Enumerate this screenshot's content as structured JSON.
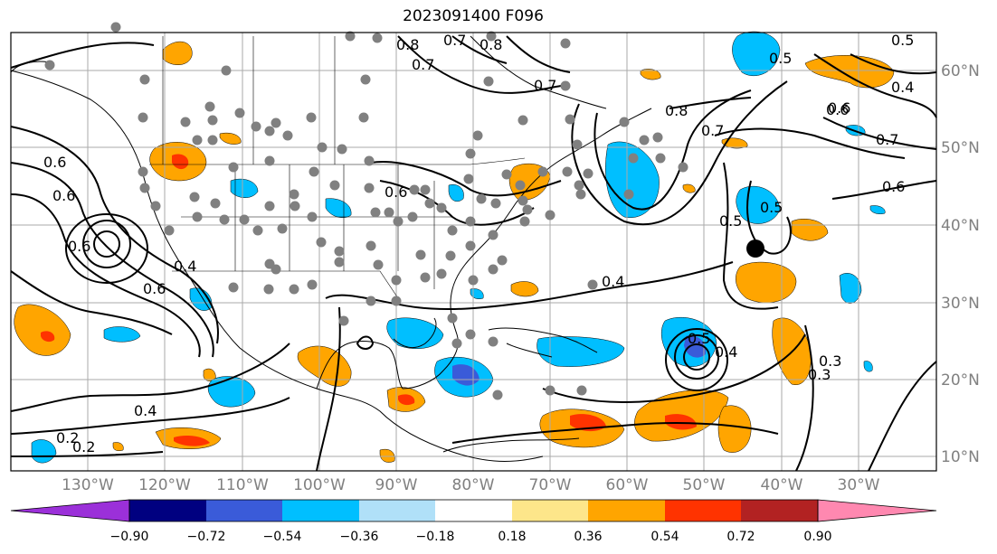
{
  "title": "2023091400 F096",
  "colors": {
    "purple": "#9b30d9",
    "navy": "#000080",
    "royal": "#3a5bd9",
    "sky": "#00bfff",
    "pale_blue": "#b0e0f8",
    "white": "#ffffff",
    "pale_yellow": "#fde68a",
    "orange": "#ffa500",
    "red_orange": "#ff3300",
    "dark_red": "#b22222",
    "pink": "#ff88b0",
    "grid": "#aaaaaa",
    "station": "#808080",
    "contour": "#000000",
    "coast": "#000000"
  },
  "lon_ticks": [
    "130°W",
    "120°W",
    "110°W",
    "100°W",
    "90°W",
    "80°W",
    "70°W",
    "60°W",
    "50°W",
    "40°W",
    "30°W"
  ],
  "lat_ticks": [
    "60°N",
    "50°N",
    "40°N",
    "30°N",
    "20°N",
    "10°N"
  ],
  "colorbar": {
    "labels": [
      "−0.90",
      "−0.72",
      "−0.54",
      "−0.36",
      "−0.18",
      "0.18",
      "0.36",
      "0.54",
      "0.72",
      "0.90"
    ],
    "colors": [
      "#9b30d9",
      "#000080",
      "#3a5bd9",
      "#00bfff",
      "#b0e0f8",
      "#ffffff",
      "#fde68a",
      "#ffa500",
      "#ff3300",
      "#b22222",
      "#ff88b0"
    ]
  },
  "contour_labels": [
    "0.8",
    "0.7",
    "0.6",
    "0.5",
    "0.4",
    "0.3",
    "0.2",
    "0.8",
    "0.7",
    "0.6",
    "0.5",
    "0.4",
    "0.7",
    "0.6",
    "0.6",
    "0.5",
    "0.4",
    "0.4",
    "0.2",
    "0.7",
    "0.6",
    "0.6",
    "0.6",
    "0.5",
    "0.4",
    "0.3",
    "0.8",
    "0.7",
    "0.6",
    "0.5"
  ]
}
